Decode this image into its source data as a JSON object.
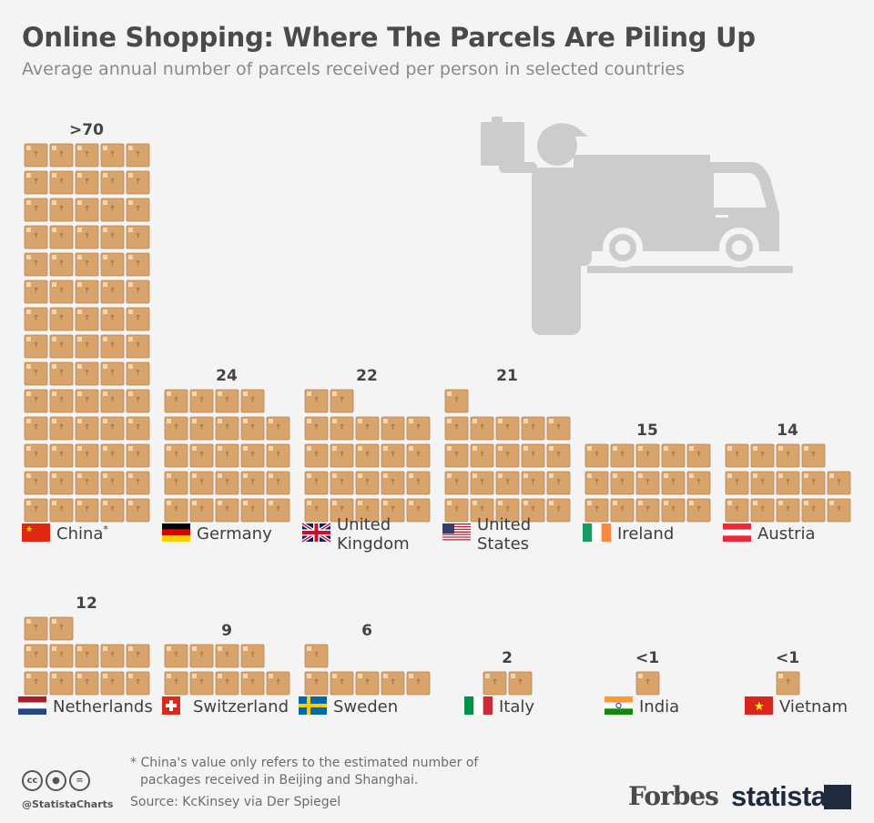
{
  "header": {
    "title": "Online Shopping: Where The Parcels Are Piling Up",
    "subtitle": "Average annual number of parcels received per person in selected countries"
  },
  "chart_data": {
    "type": "pictogram",
    "unit_note": "each box icon = 1 parcel",
    "rows": [
      {
        "baseline": 548,
        "items": [
          {
            "country": "China",
            "asterisk": true,
            "value_label": ">70",
            "icons": 70,
            "flag": "china"
          },
          {
            "country": "Germany",
            "value_label": "24",
            "icons": 24,
            "flag": "germany"
          },
          {
            "country": "United Kingdom",
            "lines": [
              "United",
              "Kingdom"
            ],
            "value_label": "22",
            "icons": 22,
            "flag": "uk"
          },
          {
            "country": "United States",
            "lines": [
              "United",
              "States"
            ],
            "value_label": "21",
            "icons": 21,
            "flag": "usa"
          },
          {
            "country": "Ireland",
            "value_label": "15",
            "icons": 15,
            "flag": "ireland"
          },
          {
            "country": "Austria",
            "value_label": "14",
            "icons": 14,
            "flag": "austria"
          }
        ]
      },
      {
        "baseline": 738,
        "items": [
          {
            "country": "Netherlands",
            "value_label": "12",
            "icons": 12,
            "flag": "netherlands"
          },
          {
            "country": "Switzerland",
            "value_label": "9",
            "icons": 9,
            "flag": "switzerland"
          },
          {
            "country": "Sweden",
            "value_label": "6",
            "icons": 6,
            "flag": "sweden"
          },
          {
            "country": "Italy",
            "value_label": "2",
            "icons": 2,
            "flag": "italy"
          },
          {
            "country": "India",
            "value_label": "<1",
            "icons": 1,
            "flag": "india"
          },
          {
            "country": "Vietnam",
            "value_label": "<1",
            "icons": 1,
            "flag": "vietnam"
          }
        ]
      }
    ],
    "colors": {
      "parcel": "#d9a46c",
      "parcel_edge": "#b88552",
      "tape": "#b07f4c",
      "illustration": "#cccccc"
    }
  },
  "footnote": {
    "line1": "* China's value only refers to the estimated number of",
    "line2": "packages received in Beijing and Shanghai.",
    "source": "Source: KcKinsey via Der Spiegel"
  },
  "branding": {
    "handle": "@StatistaCharts",
    "forbes": "Forbes",
    "statista": "statista",
    "license_icons": [
      "cc-icon",
      "by-icon",
      "nd-icon"
    ]
  }
}
